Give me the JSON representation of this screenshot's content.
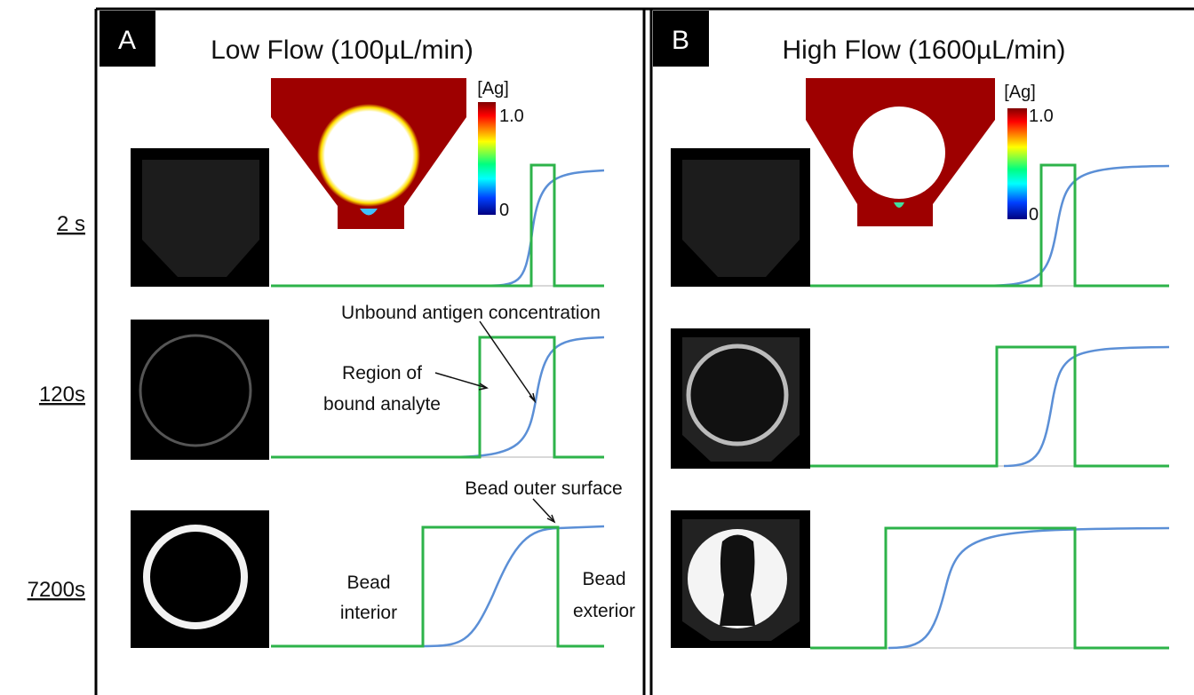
{
  "panels": [
    {
      "label": "A",
      "title": "Low Flow (100µL/min)",
      "colorbar": {
        "title": "[Ag]",
        "max": "1.0",
        "min": "0"
      }
    },
    {
      "label": "B",
      "title": "High Flow (1600µL/min)",
      "colorbar": {
        "title": "[Ag]",
        "max": "1.0",
        "min": "0"
      }
    }
  ],
  "rows": [
    "2 s",
    "120s",
    "7200s"
  ],
  "annotations": [
    {
      "lines": [
        "Unbound antigen concentration"
      ]
    },
    {
      "lines": [
        "Region of",
        "bound analyte"
      ]
    },
    {
      "lines": [
        "Bead outer surface"
      ]
    },
    {
      "lines": [
        "Bead",
        "interior"
      ]
    },
    {
      "lines": [
        "Bead",
        "exterior"
      ]
    }
  ]
}
